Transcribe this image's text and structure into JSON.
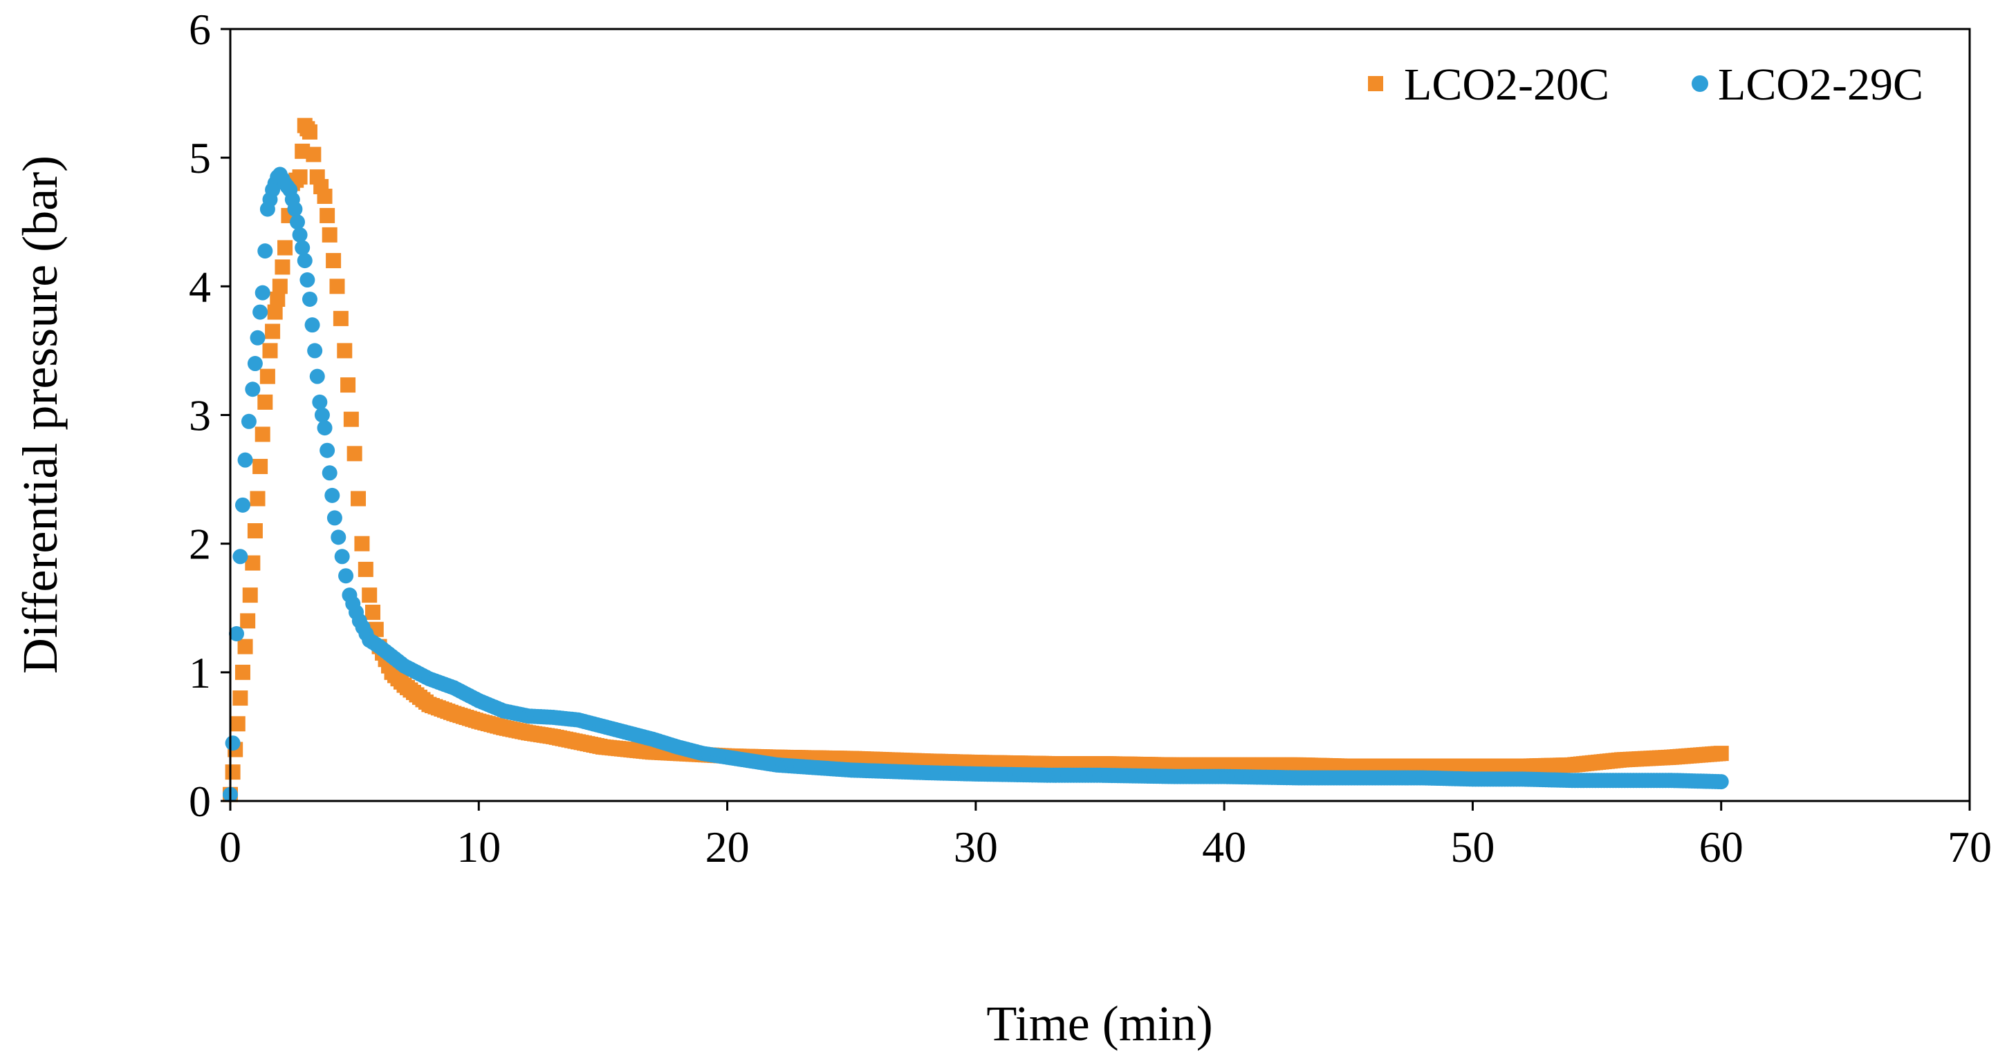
{
  "chart_data": {
    "type": "scatter",
    "title": "",
    "xlabel": "Time (min)",
    "ylabel": "Differential pressure (bar)",
    "xlim": [
      0,
      70
    ],
    "ylim": [
      0,
      6
    ],
    "x_ticks": [
      0,
      10,
      20,
      30,
      40,
      50,
      60,
      70
    ],
    "y_ticks": [
      0,
      1,
      2,
      3,
      4,
      5,
      6
    ],
    "grid": false,
    "legend_position": "top-right",
    "series": [
      {
        "name": "LCO2-20C",
        "color": "#F28C28",
        "marker": "square",
        "points": [
          [
            0,
            0.05
          ],
          [
            0.2,
            0.4
          ],
          [
            0.4,
            0.8
          ],
          [
            0.6,
            1.2
          ],
          [
            0.8,
            1.6
          ],
          [
            1.0,
            2.1
          ],
          [
            1.2,
            2.6
          ],
          [
            1.4,
            3.1
          ],
          [
            1.6,
            3.5
          ],
          [
            1.8,
            3.8
          ],
          [
            2.0,
            4.0
          ],
          [
            2.2,
            4.3
          ],
          [
            2.5,
            4.8
          ],
          [
            2.8,
            4.85
          ],
          [
            3.0,
            5.25
          ],
          [
            3.2,
            5.2
          ],
          [
            3.5,
            4.85
          ],
          [
            3.8,
            4.7
          ],
          [
            4.0,
            4.4
          ],
          [
            4.3,
            4.0
          ],
          [
            4.6,
            3.5
          ],
          [
            5.0,
            2.7
          ],
          [
            5.3,
            2.0
          ],
          [
            5.6,
            1.6
          ],
          [
            6.0,
            1.2
          ],
          [
            6.5,
            1.0
          ],
          [
            7.0,
            0.9
          ],
          [
            8.0,
            0.75
          ],
          [
            9.0,
            0.68
          ],
          [
            10.0,
            0.62
          ],
          [
            11.0,
            0.57
          ],
          [
            12.0,
            0.53
          ],
          [
            13.0,
            0.5
          ],
          [
            14.0,
            0.46
          ],
          [
            15.0,
            0.42
          ],
          [
            16.0,
            0.4
          ],
          [
            17.0,
            0.38
          ],
          [
            18.0,
            0.37
          ],
          [
            19.0,
            0.36
          ],
          [
            20.0,
            0.35
          ],
          [
            22.0,
            0.34
          ],
          [
            25.0,
            0.33
          ],
          [
            28.0,
            0.31
          ],
          [
            30.0,
            0.3
          ],
          [
            33.0,
            0.29
          ],
          [
            35.0,
            0.29
          ],
          [
            38.0,
            0.28
          ],
          [
            40.0,
            0.28
          ],
          [
            43.0,
            0.28
          ],
          [
            45.0,
            0.27
          ],
          [
            48.0,
            0.27
          ],
          [
            50.0,
            0.27
          ],
          [
            52.0,
            0.27
          ],
          [
            54.0,
            0.28
          ],
          [
            56.0,
            0.32
          ],
          [
            58.0,
            0.34
          ],
          [
            60.0,
            0.37
          ]
        ]
      },
      {
        "name": "LCO2-29C",
        "color": "#2E9FD8",
        "marker": "circle",
        "points": [
          [
            0,
            0.05
          ],
          [
            0.1,
            0.45
          ],
          [
            0.25,
            1.3
          ],
          [
            0.4,
            1.9
          ],
          [
            0.5,
            2.3
          ],
          [
            0.6,
            2.65
          ],
          [
            0.75,
            2.95
          ],
          [
            0.9,
            3.2
          ],
          [
            1.0,
            3.4
          ],
          [
            1.1,
            3.6
          ],
          [
            1.2,
            3.8
          ],
          [
            1.3,
            3.95
          ],
          [
            1.5,
            4.6
          ],
          [
            1.7,
            4.75
          ],
          [
            1.9,
            4.85
          ],
          [
            2.0,
            4.87
          ],
          [
            2.2,
            4.8
          ],
          [
            2.4,
            4.75
          ],
          [
            2.6,
            4.6
          ],
          [
            2.8,
            4.4
          ],
          [
            3.0,
            4.2
          ],
          [
            3.2,
            3.9
          ],
          [
            3.4,
            3.5
          ],
          [
            3.6,
            3.1
          ],
          [
            3.8,
            2.9
          ],
          [
            4.0,
            2.55
          ],
          [
            4.2,
            2.2
          ],
          [
            4.5,
            1.9
          ],
          [
            4.8,
            1.6
          ],
          [
            5.2,
            1.4
          ],
          [
            5.6,
            1.25
          ],
          [
            6.0,
            1.2
          ],
          [
            7.0,
            1.05
          ],
          [
            8.0,
            0.95
          ],
          [
            9.0,
            0.88
          ],
          [
            10.0,
            0.78
          ],
          [
            11.0,
            0.7
          ],
          [
            12.0,
            0.66
          ],
          [
            13.0,
            0.65
          ],
          [
            14.0,
            0.63
          ],
          [
            15.0,
            0.58
          ],
          [
            16.0,
            0.53
          ],
          [
            17.0,
            0.48
          ],
          [
            18.0,
            0.42
          ],
          [
            19.0,
            0.37
          ],
          [
            20.0,
            0.34
          ],
          [
            22.0,
            0.28
          ],
          [
            25.0,
            0.24
          ],
          [
            28.0,
            0.22
          ],
          [
            30.0,
            0.21
          ],
          [
            33.0,
            0.2
          ],
          [
            35.0,
            0.2
          ],
          [
            38.0,
            0.19
          ],
          [
            40.0,
            0.19
          ],
          [
            43.0,
            0.18
          ],
          [
            45.0,
            0.18
          ],
          [
            48.0,
            0.18
          ],
          [
            50.0,
            0.17
          ],
          [
            52.0,
            0.17
          ],
          [
            54.0,
            0.16
          ],
          [
            56.0,
            0.16
          ],
          [
            58.0,
            0.16
          ],
          [
            60.0,
            0.15
          ]
        ]
      }
    ]
  }
}
